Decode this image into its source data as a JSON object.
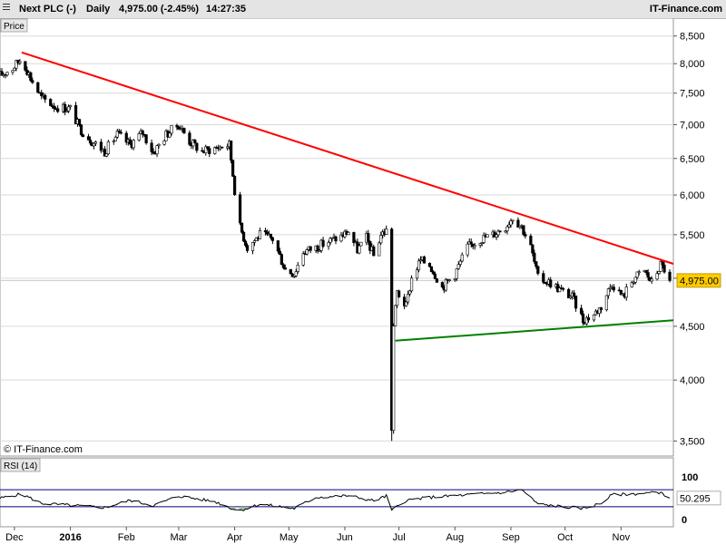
{
  "header": {
    "instrument": "Next PLC (-)",
    "period": "Daily",
    "quote": "4,975.00 (-2.45%)",
    "time": "14:27:35",
    "brand": "IT-Finance.com"
  },
  "price_panel": {
    "label": "Price",
    "copyright": "© IT-Finance.com",
    "last_label": "4,975.00"
  },
  "rsi_panel": {
    "label": "RSI (14)",
    "value_label": "50.295"
  },
  "colors": {
    "resistance": "#ff0000",
    "support": "#008000",
    "up_candle": "#ffffff",
    "down_candle": "#000000",
    "rsi_band": "#000080",
    "highlight": "#ffcc00"
  },
  "chart_data": [
    {
      "type": "candlestick",
      "y_scale": "log",
      "ylim": [
        3400,
        8700
      ],
      "y_ticks": [
        3500,
        4000,
        4500,
        5000,
        5500,
        6000,
        6500,
        7000,
        7500,
        8000,
        8500
      ],
      "y_tick_labels": [
        "3,500",
        "4,000",
        "4,500",
        "5,000",
        "5,500",
        "6,000",
        "6,500",
        "7,000",
        "7,500",
        "8,000",
        "8,500"
      ],
      "x_range": [
        "2015-11-23",
        "2016-11-30"
      ],
      "x_ticks": [
        "2015-12-01",
        "2016-01-01",
        "2016-02-01",
        "2016-03-01",
        "2016-04-01",
        "2016-05-01",
        "2016-06-01",
        "2016-07-01",
        "2016-08-01",
        "2016-09-01",
        "2016-10-01",
        "2016-11-01"
      ],
      "x_tick_labels": [
        "Dec",
        "2016",
        "Feb",
        "Mar",
        "Apr",
        "May",
        "Jun",
        "Jul",
        "Aug",
        "Sep",
        "Oct",
        "Nov"
      ],
      "close_path": [
        [
          "2015-11-23",
          7800
        ],
        [
          "2015-11-30",
          7920
        ],
        [
          "2015-12-05",
          8100
        ],
        [
          "2015-12-10",
          7750
        ],
        [
          "2015-12-16",
          7420
        ],
        [
          "2015-12-24",
          7280
        ],
        [
          "2016-01-01",
          7250
        ],
        [
          "2016-01-06",
          6950
        ],
        [
          "2016-01-13",
          6750
        ],
        [
          "2016-01-20",
          6600
        ],
        [
          "2016-01-27",
          6850
        ],
        [
          "2016-02-03",
          6700
        ],
        [
          "2016-02-10",
          6880
        ],
        [
          "2016-02-16",
          6580
        ],
        [
          "2016-02-23",
          6850
        ],
        [
          "2016-03-01",
          7000
        ],
        [
          "2016-03-07",
          6750
        ],
        [
          "2016-03-14",
          6600
        ],
        [
          "2016-03-21",
          6650
        ],
        [
          "2016-03-29",
          6700
        ],
        [
          "2016-04-03",
          5650
        ],
        [
          "2016-04-08",
          5350
        ],
        [
          "2016-04-15",
          5500
        ],
        [
          "2016-04-22",
          5450
        ],
        [
          "2016-04-29",
          5100
        ],
        [
          "2016-05-04",
          5050
        ],
        [
          "2016-05-09",
          5300
        ],
        [
          "2016-05-16",
          5350
        ],
        [
          "2016-05-23",
          5420
        ],
        [
          "2016-05-30",
          5480
        ],
        [
          "2016-06-03",
          5540
        ],
        [
          "2016-06-08",
          5320
        ],
        [
          "2016-06-13",
          5460
        ],
        [
          "2016-06-17",
          5250
        ],
        [
          "2016-06-21",
          5500
        ],
        [
          "2016-06-24",
          5550
        ],
        [
          "2016-06-27",
          3600
        ],
        [
          "2016-06-28",
          4500
        ],
        [
          "2016-06-30",
          4850
        ],
        [
          "2016-07-05",
          4700
        ],
        [
          "2016-07-08",
          5000
        ],
        [
          "2016-07-13",
          5200
        ],
        [
          "2016-07-18",
          5150
        ],
        [
          "2016-07-25",
          4900
        ],
        [
          "2016-08-01",
          5050
        ],
        [
          "2016-08-08",
          5350
        ],
        [
          "2016-08-15",
          5450
        ],
        [
          "2016-08-22",
          5500
        ],
        [
          "2016-08-29",
          5600
        ],
        [
          "2016-09-02",
          5720
        ],
        [
          "2016-09-07",
          5600
        ],
        [
          "2016-09-12",
          5350
        ],
        [
          "2016-09-16",
          5000
        ],
        [
          "2016-09-23",
          4950
        ],
        [
          "2016-09-30",
          4850
        ],
        [
          "2016-10-05",
          4800
        ],
        [
          "2016-10-11",
          4560
        ],
        [
          "2016-10-17",
          4620
        ],
        [
          "2016-10-21",
          4700
        ],
        [
          "2016-10-27",
          4950
        ],
        [
          "2016-11-02",
          4800
        ],
        [
          "2016-11-08",
          5000
        ],
        [
          "2016-11-14",
          5080
        ],
        [
          "2016-11-18",
          4950
        ],
        [
          "2016-11-23",
          5150
        ],
        [
          "2016-11-25",
          5100
        ],
        [
          "2016-11-28",
          4975
        ]
      ],
      "trendlines": [
        {
          "role": "resistance",
          "from": [
            "2015-12-05",
            8200
          ],
          "to": [
            "2016-11-30",
            5160
          ]
        },
        {
          "role": "support",
          "from": [
            "2016-06-29",
            4360
          ],
          "to": [
            "2016-11-30",
            4560
          ]
        }
      ],
      "last_price": 4975
    },
    {
      "type": "line",
      "ylim": [
        0,
        100
      ],
      "y_ticks": [
        0,
        100
      ],
      "y_tick_labels": [
        "0",
        "100"
      ],
      "bands": [
        30,
        70
      ],
      "last_value": 50.295,
      "rsi_path": [
        [
          "2015-11-23",
          50
        ],
        [
          "2015-12-05",
          60
        ],
        [
          "2015-12-16",
          38
        ],
        [
          "2016-01-06",
          32
        ],
        [
          "2016-01-20",
          28
        ],
        [
          "2016-02-03",
          45
        ],
        [
          "2016-02-16",
          33
        ],
        [
          "2016-03-01",
          55
        ],
        [
          "2016-03-21",
          42
        ],
        [
          "2016-04-03",
          20
        ],
        [
          "2016-04-15",
          36
        ],
        [
          "2016-05-04",
          26
        ],
        [
          "2016-05-16",
          52
        ],
        [
          "2016-06-03",
          56
        ],
        [
          "2016-06-17",
          44
        ],
        [
          "2016-06-24",
          55
        ],
        [
          "2016-06-27",
          22
        ],
        [
          "2016-07-05",
          45
        ],
        [
          "2016-07-18",
          52
        ],
        [
          "2016-08-08",
          58
        ],
        [
          "2016-08-29",
          64
        ],
        [
          "2016-09-07",
          70
        ],
        [
          "2016-09-16",
          36
        ],
        [
          "2016-09-30",
          30
        ],
        [
          "2016-10-11",
          26
        ],
        [
          "2016-10-21",
          38
        ],
        [
          "2016-10-27",
          58
        ],
        [
          "2016-11-08",
          60
        ],
        [
          "2016-11-23",
          64
        ],
        [
          "2016-11-28",
          50.295
        ]
      ]
    }
  ]
}
